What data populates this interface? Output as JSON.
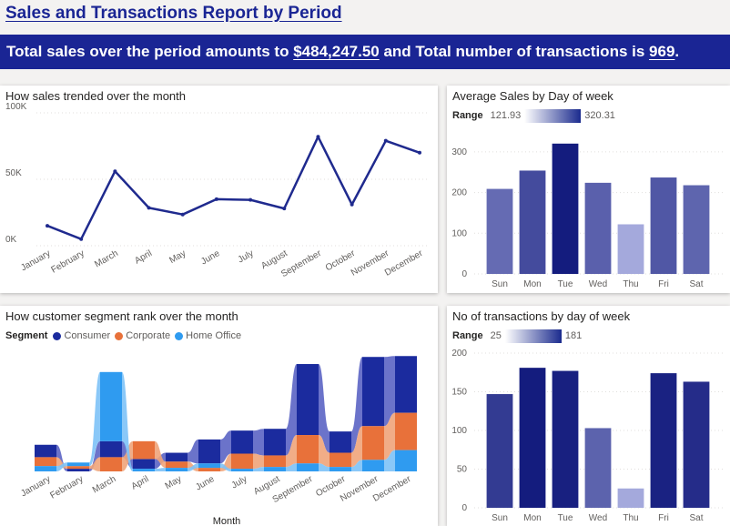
{
  "page": {
    "title": "Sales and Transactions Report by Period"
  },
  "summary": {
    "part1": "Total sales over the period amounts to ",
    "sales_total": "$484,247.50",
    "part2": " and Total number of transactions is ",
    "transactions_total": "969",
    "part3": "."
  },
  "colors": {
    "brand": "#1a2594",
    "line": "#1f2a8e",
    "consumer": "#1b2b9e",
    "corporate": "#e8713a",
    "home_office": "#2f9bf0"
  },
  "panels": {
    "sales_trend": {
      "title": "How sales trended over the month"
    },
    "avg_sales_dow": {
      "title": "Average Sales by Day of week",
      "range_label": "Range",
      "range_min": "121.93",
      "range_max": "320.31"
    },
    "segment_rank": {
      "title": "How customer segment rank over the month",
      "legend_label": "Segment",
      "legend": [
        "Consumer",
        "Corporate",
        "Home Office"
      ]
    },
    "transactions_dow": {
      "title": "No of transactions by day of week",
      "range_label": "Range",
      "range_min": "25",
      "range_max": "181"
    }
  },
  "chart_data": [
    {
      "id": "sales_trend",
      "type": "line",
      "title": "How sales trended over the month",
      "categories": [
        "January",
        "February",
        "March",
        "April",
        "May",
        "June",
        "July",
        "August",
        "September",
        "October",
        "November",
        "December"
      ],
      "values": [
        15000,
        5000,
        56000,
        28500,
        23500,
        35000,
        34500,
        28000,
        82000,
        31000,
        79000,
        70000
      ],
      "ylim": [
        0,
        100000
      ],
      "yticks": [
        0,
        50000,
        100000
      ],
      "ytick_labels": [
        "0K",
        "50K",
        "100K"
      ],
      "grid": true
    },
    {
      "id": "avg_sales_dow",
      "type": "bar",
      "title": "Average Sales by Day of week",
      "categories": [
        "Sun",
        "Mon",
        "Tue",
        "Wed",
        "Thu",
        "Fri",
        "Sat"
      ],
      "values": [
        209,
        254,
        320.31,
        224,
        121.93,
        237,
        218
      ],
      "ylim": [
        0,
        340
      ],
      "yticks": [
        0,
        100,
        200,
        300
      ],
      "color_range": [
        121.93,
        320.31
      ],
      "grid": true
    },
    {
      "id": "segment_rank",
      "type": "area",
      "title": "How customer segment rank over the month",
      "xlabel": "Month",
      "categories": [
        "January",
        "February",
        "March",
        "April",
        "May",
        "June",
        "July",
        "August",
        "September",
        "October",
        "November",
        "December"
      ],
      "series": [
        {
          "name": "Consumer",
          "values": [
            7000,
            1500,
            9000,
            5500,
            5000,
            13500,
            13000,
            15000,
            40000,
            12000,
            39000,
            32000
          ]
        },
        {
          "name": "Corporate",
          "values": [
            5000,
            1500,
            8000,
            10000,
            3500,
            2000,
            8500,
            6500,
            16000,
            8000,
            19000,
            21000
          ]
        },
        {
          "name": "Home Office",
          "values": [
            3000,
            2000,
            39000,
            1500,
            2000,
            2500,
            1500,
            2500,
            4500,
            2500,
            6500,
            12000
          ]
        }
      ],
      "legend_position": "top-left"
    },
    {
      "id": "transactions_dow",
      "type": "bar",
      "title": "No of transactions by day of week",
      "categories": [
        "Sun",
        "Mon",
        "Tue",
        "Wed",
        "Thu",
        "Fri",
        "Sat"
      ],
      "values": [
        147,
        181,
        177,
        103,
        25,
        174,
        163
      ],
      "ylim": [
        0,
        200
      ],
      "yticks": [
        0,
        50,
        100,
        150,
        200
      ],
      "color_range": [
        25,
        181
      ],
      "grid": true
    }
  ]
}
